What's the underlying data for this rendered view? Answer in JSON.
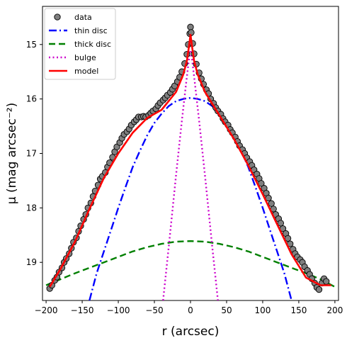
{
  "chart_data": {
    "type": "scatter",
    "xlabel": "r (arcsec)",
    "ylabel": "μ (mag arcsec⁻²)",
    "xlim": [
      -205,
      205
    ],
    "ylim": [
      19.7,
      14.3
    ],
    "y_inverted": true,
    "grid": false,
    "legend_position": "top-left",
    "x_ticks": [
      -200,
      -150,
      -100,
      -50,
      0,
      50,
      100,
      150,
      200
    ],
    "x_tick_labels": [
      "−200",
      "−150",
      "−100",
      "−50",
      "0",
      "50",
      "100",
      "150",
      "200"
    ],
    "y_ticks": [
      15,
      16,
      17,
      18,
      19
    ],
    "y_tick_labels": [
      "15",
      "16",
      "17",
      "18",
      "19"
    ],
    "series": [
      {
        "name": "data",
        "style": "markers",
        "color": "#7f7f7f",
        "edge_color": "#000000",
        "x": [
          -195,
          -192,
          -188,
          -185,
          -182,
          -178,
          -175,
          -172,
          -168,
          -165,
          -162,
          -158,
          -155,
          -152,
          -148,
          -145,
          -142,
          -138,
          -135,
          -132,
          -128,
          -125,
          -122,
          -118,
          -115,
          -112,
          -108,
          -105,
          -102,
          -98,
          -95,
          -92,
          -88,
          -85,
          -82,
          -78,
          -75,
          -72,
          -68,
          -65,
          -62,
          -58,
          -55,
          -52,
          -48,
          -45,
          -42,
          -38,
          -35,
          -32,
          -28,
          -25,
          -22,
          -18,
          -15,
          -12,
          -8,
          -5,
          -3,
          -1,
          0,
          1,
          3,
          5,
          8,
          12,
          15,
          18,
          22,
          25,
          28,
          32,
          35,
          38,
          42,
          45,
          48,
          52,
          55,
          58,
          62,
          65,
          68,
          72,
          75,
          78,
          82,
          85,
          88,
          92,
          95,
          98,
          102,
          105,
          108,
          112,
          115,
          118,
          122,
          125,
          128,
          132,
          135,
          138,
          142,
          145,
          148,
          152,
          155,
          158,
          162,
          165,
          168,
          172,
          175,
          178,
          182,
          185,
          188
        ],
        "y": [
          19.48,
          19.42,
          19.33,
          19.27,
          19.18,
          19.1,
          19.0,
          18.93,
          18.84,
          18.74,
          18.63,
          18.55,
          18.43,
          18.33,
          18.21,
          18.12,
          18.0,
          17.91,
          17.79,
          17.69,
          17.58,
          17.47,
          17.42,
          17.35,
          17.25,
          17.17,
          17.07,
          16.97,
          16.88,
          16.8,
          16.72,
          16.65,
          16.6,
          16.55,
          16.48,
          16.42,
          16.38,
          16.33,
          16.33,
          16.32,
          16.33,
          16.3,
          16.26,
          16.22,
          16.18,
          16.12,
          16.07,
          16.02,
          15.98,
          15.93,
          15.88,
          15.82,
          15.76,
          15.68,
          15.6,
          15.5,
          15.35,
          15.18,
          15.0,
          14.8,
          14.68,
          14.78,
          14.98,
          15.17,
          15.36,
          15.52,
          15.63,
          15.73,
          15.83,
          15.9,
          16.0,
          16.08,
          16.16,
          16.22,
          16.28,
          16.36,
          16.42,
          16.48,
          16.56,
          16.62,
          16.7,
          16.78,
          16.86,
          16.93,
          17.0,
          17.08,
          17.15,
          17.22,
          17.3,
          17.38,
          17.46,
          17.55,
          17.64,
          17.73,
          17.82,
          17.92,
          18.02,
          18.12,
          18.2,
          18.28,
          18.38,
          18.47,
          18.56,
          18.66,
          18.76,
          18.84,
          18.9,
          18.95,
          19.0,
          19.08,
          19.15,
          19.22,
          19.3,
          19.38,
          19.46,
          19.5,
          19.38,
          19.3,
          19.35
        ]
      },
      {
        "name": "thin disc",
        "style": "dashdot",
        "color": "#0000ff",
        "x": [
          -140,
          -130,
          -120,
          -110,
          -100,
          -90,
          -80,
          -70,
          -60,
          -50,
          -40,
          -30,
          -20,
          -10,
          0,
          10,
          20,
          30,
          40,
          50,
          60,
          70,
          80,
          90,
          100,
          110,
          120,
          130,
          140
        ],
        "y": [
          19.7,
          19.2,
          18.8,
          18.4,
          18.0,
          17.62,
          17.25,
          16.95,
          16.67,
          16.44,
          16.27,
          16.13,
          16.04,
          16.0,
          15.98,
          16.0,
          16.04,
          16.13,
          16.27,
          16.44,
          16.67,
          16.95,
          17.25,
          17.62,
          18.0,
          18.4,
          18.8,
          19.2,
          19.7
        ]
      },
      {
        "name": "thick disc",
        "style": "dashed",
        "color": "#008000",
        "x": [
          -200,
          -180,
          -160,
          -140,
          -120,
          -100,
          -80,
          -60,
          -40,
          -20,
          0,
          20,
          40,
          60,
          80,
          100,
          120,
          140,
          160,
          180,
          200
        ],
        "y": [
          19.42,
          19.31,
          19.2,
          19.1,
          19.0,
          18.9,
          18.8,
          18.72,
          18.66,
          18.62,
          18.61,
          18.62,
          18.66,
          18.72,
          18.8,
          18.9,
          19.0,
          19.1,
          19.2,
          19.31,
          19.45
        ]
      },
      {
        "name": "bulge",
        "style": "dotted",
        "color": "#cc00cc",
        "x": [
          -38,
          -30,
          -20,
          -12,
          -6,
          -2,
          0,
          2,
          6,
          12,
          20,
          30,
          38
        ],
        "y": [
          19.7,
          18.7,
          17.4,
          16.4,
          15.7,
          15.25,
          15.1,
          15.25,
          15.7,
          16.4,
          17.4,
          18.7,
          19.7
        ]
      },
      {
        "name": "model",
        "style": "solid",
        "color": "#ff0000",
        "x": [
          -195,
          -180,
          -160,
          -140,
          -120,
          -100,
          -80,
          -60,
          -40,
          -20,
          -10,
          -5,
          -2,
          0,
          2,
          5,
          10,
          20,
          40,
          60,
          80,
          100,
          120,
          140,
          160,
          180,
          195
        ],
        "y": [
          19.45,
          19.12,
          18.62,
          18.02,
          17.45,
          17.0,
          16.62,
          16.35,
          16.2,
          15.87,
          15.55,
          15.3,
          15.02,
          14.82,
          15.02,
          15.3,
          15.55,
          15.87,
          16.3,
          16.73,
          17.22,
          17.75,
          18.3,
          18.85,
          19.28,
          19.42,
          19.42
        ]
      }
    ]
  }
}
